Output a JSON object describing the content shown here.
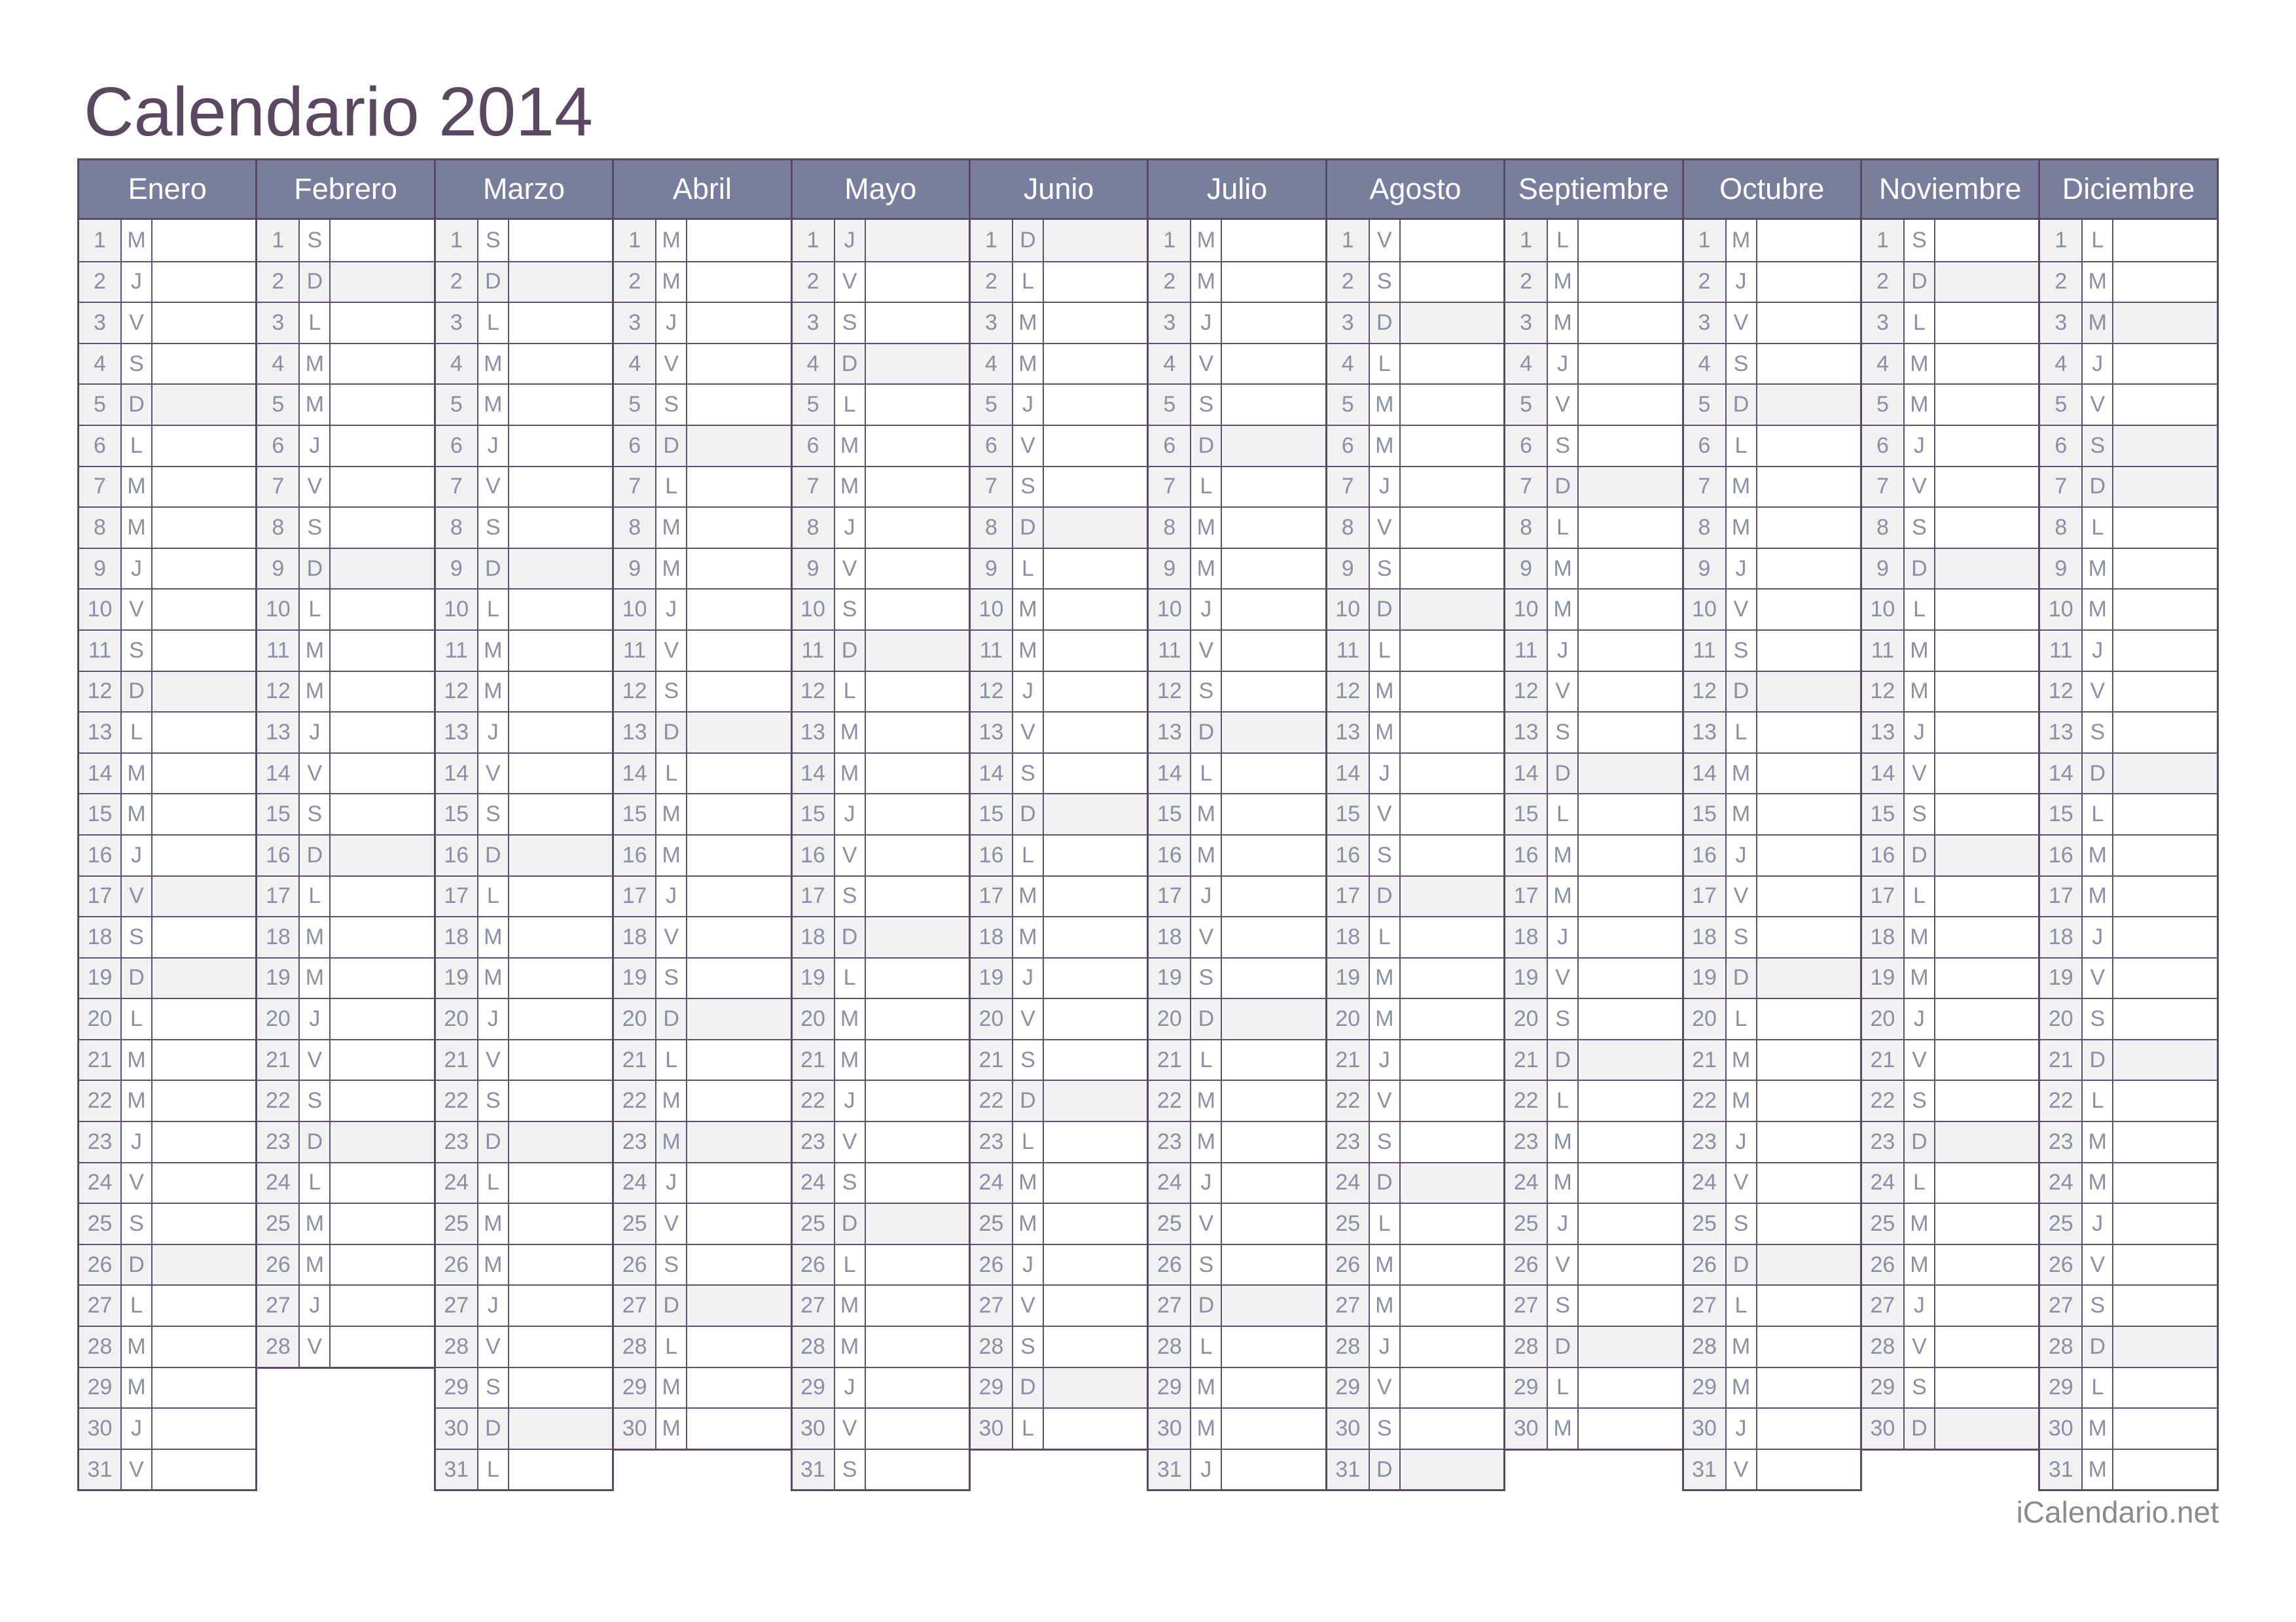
{
  "title": "Calendario 2014",
  "footer": "iCalendario.net",
  "colors": {
    "title_text": "#5c4763",
    "month_header_bg": "#787f9c",
    "month_header_text": "#ffffff",
    "border": "#584a63",
    "inner_line": "#5e5170",
    "day_text": "#8a90a4",
    "number_cell_bg": "#f1f1f2",
    "highlight_bg": "#f1f1f2",
    "footer_text": "#8b8b8b",
    "page_bg": "#ffffff"
  },
  "months": [
    {
      "name": "Enero",
      "letters": [
        "M",
        "J",
        "V",
        "S",
        "D",
        "L",
        "M",
        "M",
        "J",
        "V",
        "S",
        "D",
        "L",
        "M",
        "M",
        "J",
        "V",
        "S",
        "D",
        "L",
        "M",
        "M",
        "J",
        "V",
        "S",
        "D",
        "L",
        "M",
        "M",
        "J",
        "V"
      ],
      "highlighted": [
        5,
        12,
        17,
        19,
        26
      ]
    },
    {
      "name": "Febrero",
      "letters": [
        "S",
        "D",
        "L",
        "M",
        "M",
        "J",
        "V",
        "S",
        "D",
        "L",
        "M",
        "M",
        "J",
        "V",
        "S",
        "D",
        "L",
        "M",
        "M",
        "J",
        "V",
        "S",
        "D",
        "L",
        "M",
        "M",
        "J",
        "V"
      ],
      "highlighted": [
        2,
        9,
        16,
        23
      ]
    },
    {
      "name": "Marzo",
      "letters": [
        "S",
        "D",
        "L",
        "M",
        "M",
        "J",
        "V",
        "S",
        "D",
        "L",
        "M",
        "M",
        "J",
        "V",
        "S",
        "D",
        "L",
        "M",
        "M",
        "J",
        "V",
        "S",
        "D",
        "L",
        "M",
        "M",
        "J",
        "V",
        "S",
        "D",
        "L"
      ],
      "highlighted": [
        2,
        9,
        16,
        23,
        30
      ]
    },
    {
      "name": "Abril",
      "letters": [
        "M",
        "M",
        "J",
        "V",
        "S",
        "D",
        "L",
        "M",
        "M",
        "J",
        "V",
        "S",
        "D",
        "L",
        "M",
        "M",
        "J",
        "V",
        "S",
        "D",
        "L",
        "M",
        "M",
        "J",
        "V",
        "S",
        "D",
        "L",
        "M",
        "M"
      ],
      "highlighted": [
        6,
        13,
        20,
        23,
        27
      ]
    },
    {
      "name": "Mayo",
      "letters": [
        "J",
        "V",
        "S",
        "D",
        "L",
        "M",
        "M",
        "J",
        "V",
        "S",
        "D",
        "L",
        "M",
        "M",
        "J",
        "V",
        "S",
        "D",
        "L",
        "M",
        "M",
        "J",
        "V",
        "S",
        "D",
        "L",
        "M",
        "M",
        "J",
        "V",
        "S"
      ],
      "highlighted": [
        1,
        4,
        11,
        18,
        25
      ]
    },
    {
      "name": "Junio",
      "letters": [
        "D",
        "L",
        "M",
        "M",
        "J",
        "V",
        "S",
        "D",
        "L",
        "M",
        "M",
        "J",
        "V",
        "S",
        "D",
        "L",
        "M",
        "M",
        "J",
        "V",
        "S",
        "D",
        "L",
        "M",
        "M",
        "J",
        "V",
        "S",
        "D",
        "L"
      ],
      "highlighted": [
        1,
        8,
        15,
        22,
        29
      ]
    },
    {
      "name": "Julio",
      "letters": [
        "M",
        "M",
        "J",
        "V",
        "S",
        "D",
        "L",
        "M",
        "M",
        "J",
        "V",
        "S",
        "D",
        "L",
        "M",
        "M",
        "J",
        "V",
        "S",
        "D",
        "L",
        "M",
        "M",
        "J",
        "V",
        "S",
        "D",
        "L",
        "M",
        "M",
        "J"
      ],
      "highlighted": [
        6,
        13,
        20,
        27
      ]
    },
    {
      "name": "Agosto",
      "letters": [
        "V",
        "S",
        "D",
        "L",
        "M",
        "M",
        "J",
        "V",
        "S",
        "D",
        "L",
        "M",
        "M",
        "J",
        "V",
        "S",
        "D",
        "L",
        "M",
        "M",
        "J",
        "V",
        "S",
        "D",
        "L",
        "M",
        "M",
        "J",
        "V",
        "S",
        "D"
      ],
      "highlighted": [
        3,
        10,
        17,
        24,
        31
      ]
    },
    {
      "name": "Septiembre",
      "letters": [
        "L",
        "M",
        "M",
        "J",
        "V",
        "S",
        "D",
        "L",
        "M",
        "M",
        "J",
        "V",
        "S",
        "D",
        "L",
        "M",
        "M",
        "J",
        "V",
        "S",
        "D",
        "L",
        "M",
        "M",
        "J",
        "V",
        "S",
        "D",
        "L",
        "M"
      ],
      "highlighted": [
        7,
        14,
        21,
        28
      ]
    },
    {
      "name": "Octubre",
      "letters": [
        "M",
        "J",
        "V",
        "S",
        "D",
        "L",
        "M",
        "M",
        "J",
        "V",
        "S",
        "D",
        "L",
        "M",
        "M",
        "J",
        "V",
        "S",
        "D",
        "L",
        "M",
        "M",
        "J",
        "V",
        "S",
        "D",
        "L",
        "M",
        "M",
        "J",
        "V"
      ],
      "highlighted": [
        5,
        12,
        19,
        26
      ]
    },
    {
      "name": "Noviembre",
      "letters": [
        "S",
        "D",
        "L",
        "M",
        "M",
        "J",
        "V",
        "S",
        "D",
        "L",
        "M",
        "M",
        "J",
        "V",
        "S",
        "D",
        "L",
        "M",
        "M",
        "J",
        "V",
        "S",
        "D",
        "L",
        "M",
        "M",
        "J",
        "V",
        "S",
        "D"
      ],
      "highlighted": [
        2,
        9,
        16,
        23,
        30
      ]
    },
    {
      "name": "Diciembre",
      "letters": [
        "L",
        "M",
        "M",
        "J",
        "V",
        "S",
        "D",
        "L",
        "M",
        "M",
        "J",
        "V",
        "S",
        "D",
        "L",
        "M",
        "M",
        "J",
        "V",
        "S",
        "D",
        "L",
        "M",
        "M",
        "J",
        "V",
        "S",
        "D",
        "L",
        "M",
        "M"
      ],
      "highlighted": [
        3,
        6,
        7,
        14,
        21,
        28
      ]
    }
  ]
}
